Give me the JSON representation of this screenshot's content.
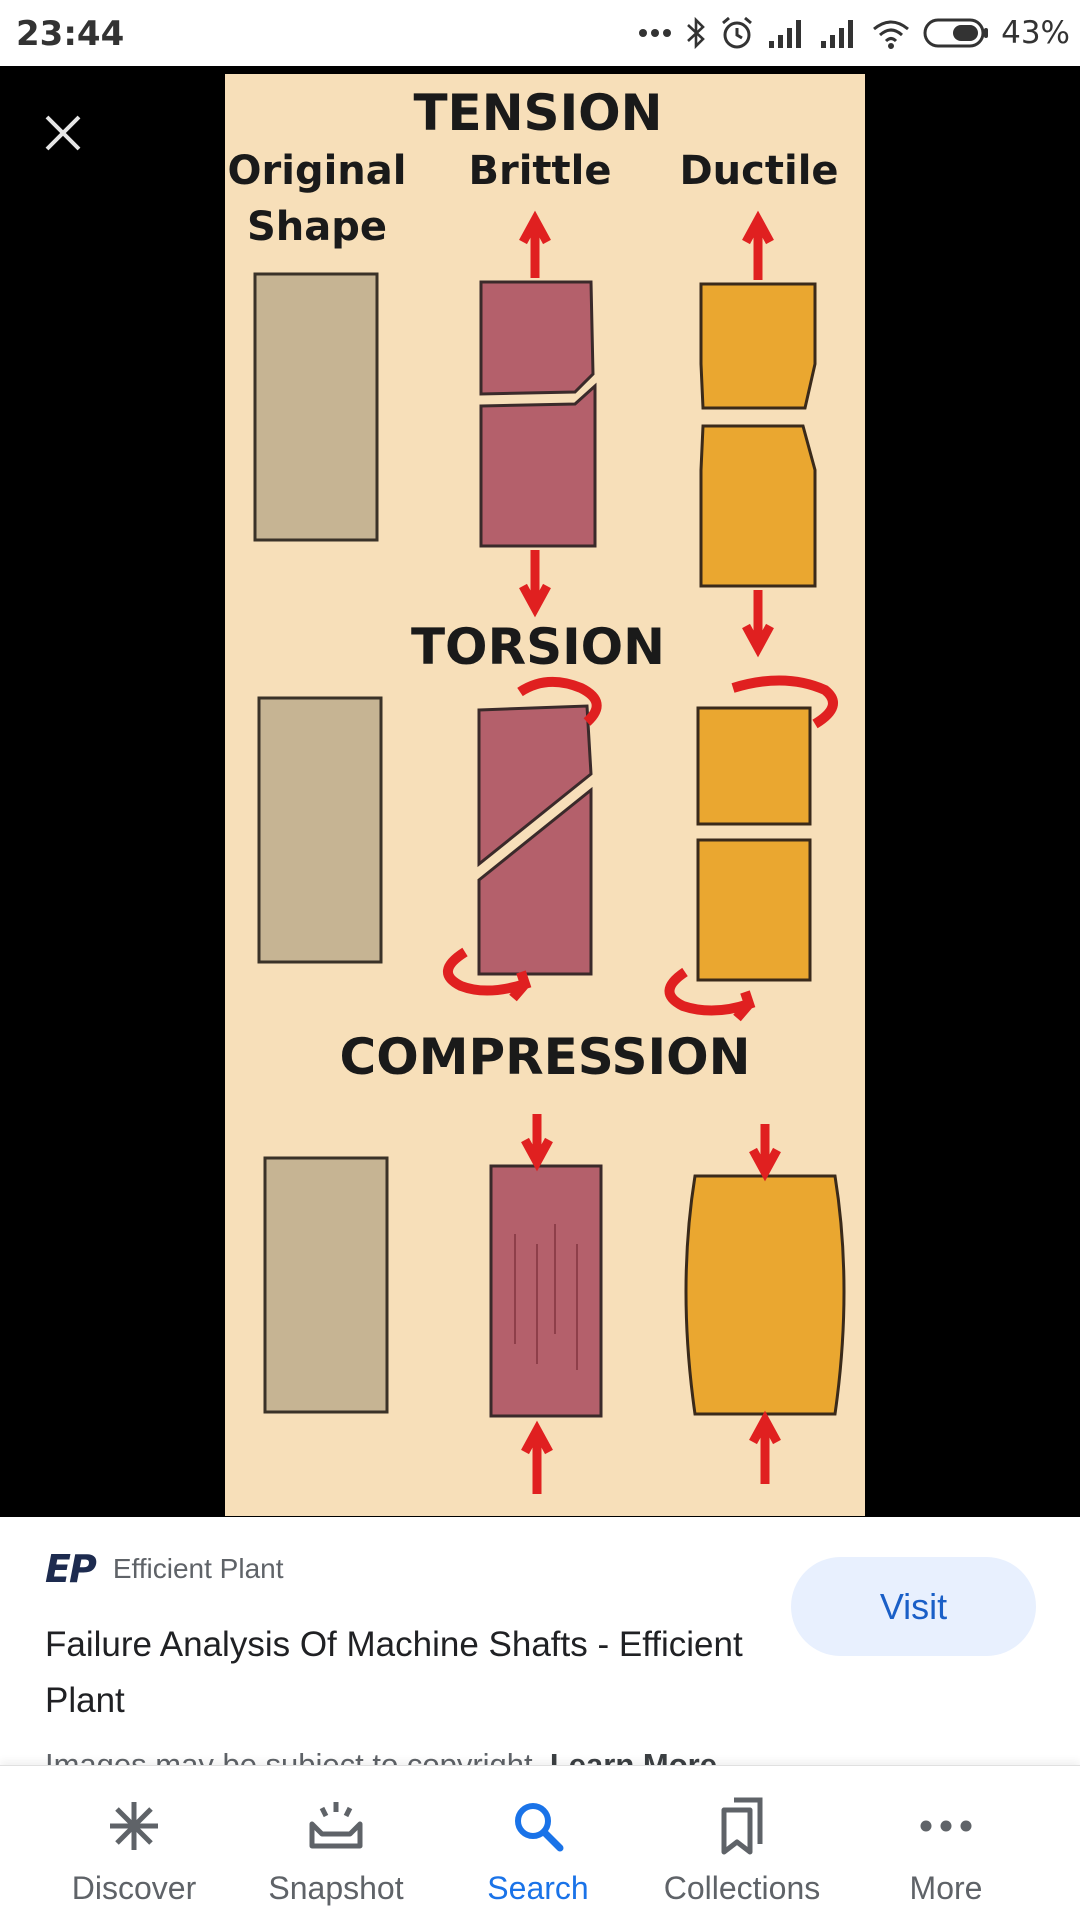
{
  "status_bar": {
    "time": "23:44",
    "battery": "43%",
    "icons": [
      "more-dots-icon",
      "bluetooth-icon",
      "alarm-icon",
      "signal-icon",
      "signal-icon",
      "wifi-icon",
      "battery-icon"
    ]
  },
  "viewer": {
    "close_icon": "close-icon",
    "diagram": {
      "tension": "TENSION",
      "original_line1": "Original",
      "original_line2": "Shape",
      "brittle": "Brittle",
      "ductile": "Ductile",
      "torsion": "TORSION",
      "compression": "COMPRESSION",
      "colors": {
        "background": "#f7dfb9",
        "original": "#c6b493",
        "brittle": "#b4606b",
        "ductile": "#eaa730",
        "arrow": "#e02020"
      }
    }
  },
  "result": {
    "source_logo": "EP",
    "source_name": "Efficient Plant",
    "title": "Failure Analysis Of Machine Shafts - Efficient Plant",
    "visit_label": "Visit",
    "copyright": "Images may be subject to copyright.",
    "learn_more": "Learn More"
  },
  "bottom_nav": {
    "items": [
      {
        "label": "Discover",
        "icon": "asterisk-icon"
      },
      {
        "label": "Snapshot",
        "icon": "snapshot-icon"
      },
      {
        "label": "Search",
        "icon": "search-icon",
        "active": true
      },
      {
        "label": "Collections",
        "icon": "collections-icon"
      },
      {
        "label": "More",
        "icon": "more-icon"
      }
    ],
    "active_color": "#1a73e8"
  }
}
